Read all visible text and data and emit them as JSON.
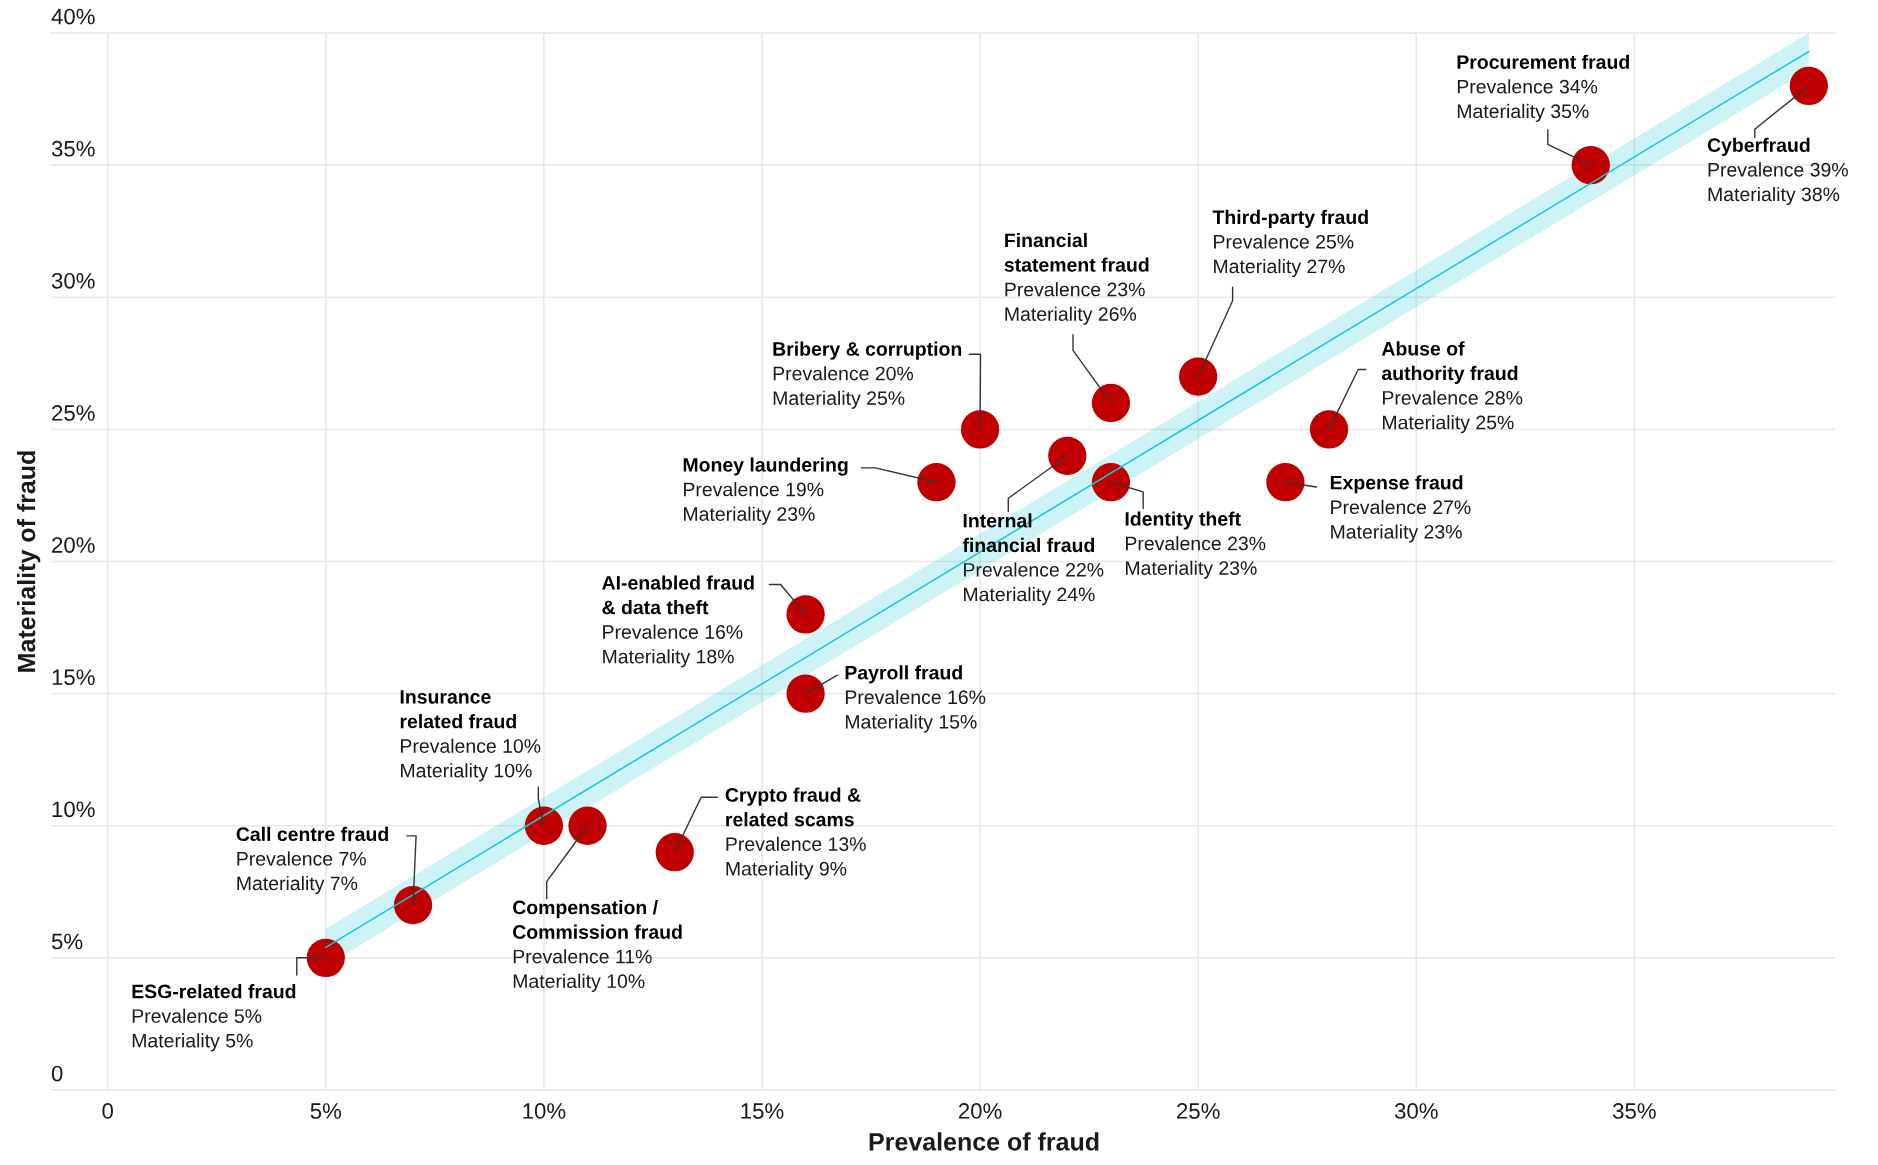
{
  "chart_data": {
    "type": "scatter",
    "xlabel": "Prevalence of fraud",
    "ylabel": "Materiality of fraud",
    "xlim": [
      -1.3,
      39.6
    ],
    "ylim": [
      0,
      40
    ],
    "xticks": [
      0,
      {
        "value": 5,
        "label": "5%"
      },
      {
        "value": 10,
        "label": "10%"
      },
      {
        "value": 15,
        "label": "15%"
      },
      {
        "value": 20,
        "label": "20%"
      },
      {
        "value": 25,
        "label": "25%"
      },
      {
        "value": 30,
        "label": "30%"
      },
      {
        "value": 35,
        "label": "35%"
      }
    ],
    "yticks": [
      0,
      {
        "value": 5,
        "label": "5%"
      },
      {
        "value": 10,
        "label": "10%"
      },
      {
        "value": 15,
        "label": "15%"
      },
      {
        "value": 20,
        "label": "20%"
      },
      {
        "value": 25,
        "label": "25%"
      },
      {
        "value": 30,
        "label": "30%"
      },
      {
        "value": 35,
        "label": "35%"
      },
      {
        "value": 40,
        "label": "40%"
      }
    ],
    "grid": true,
    "series": [
      {
        "type": "line",
        "color": "#1cc7d6",
        "x": [
          5.0,
          39.0
        ],
        "values": [
          5.4,
          39.3
        ],
        "lower": [
          4.7,
          38.6
        ],
        "upper": [
          6.1,
          40.0
        ]
      },
      {
        "color": "#c00000",
        "marker": "circle",
        "x": [
          5,
          7,
          10,
          11,
          13,
          16,
          16,
          19,
          20,
          22,
          23,
          23,
          25,
          27,
          28,
          34,
          39
        ],
        "values": [
          5,
          7,
          10,
          10,
          9,
          18,
          15,
          23,
          25,
          24,
          26,
          23,
          27,
          23,
          25,
          35,
          38
        ]
      }
    ],
    "annotations": [
      {
        "text": "ESG-related fraud\nPrevalence 5%\nMateriality 5%",
        "x": 5,
        "y": 5
      },
      {
        "text": "Call centre fraud\nPrevalence 7%\nMateriality 7%",
        "x": 7,
        "y": 7
      },
      {
        "text": "Insurance\nrelated fraud\nPrevalence 10%\nMateriality 10%",
        "x": 10,
        "y": 10
      },
      {
        "text": "Compensation /\nCommission fraud\nPrevalence 11%\nMateriality 10%",
        "x": 11,
        "y": 10
      },
      {
        "text": "Crypto fraud &\nrelated scams\nPrevalence 13%\nMateriality 9%",
        "x": 13,
        "y": 9
      },
      {
        "text": "AI-enabled fraud\n& data theft\nPrevalence 16%\nMateriality 18%",
        "x": 16,
        "y": 18
      },
      {
        "text": "Payroll fraud\nPrevalence 16%\nMateriality 15%",
        "x": 16,
        "y": 15
      },
      {
        "text": "Money laundering\nPrevalence 19%\nMateriality 23%",
        "x": 19,
        "y": 23
      },
      {
        "text": "Bribery & corruption\nPrevalence 20%\nMateriality 25%",
        "x": 20,
        "y": 25
      },
      {
        "text": "Internal\nfinancial fraud\nPrevalence 22%\nMateriality 24%",
        "x": 22,
        "y": 24
      },
      {
        "text": "Financial\nstatement fraud\nPrevalence 23%\nMateriality 26%",
        "x": 23,
        "y": 26
      },
      {
        "text": "Identity theft\nPrevalence 23%\nMateriality 23%",
        "x": 23,
        "y": 23
      },
      {
        "text": "Third-party fraud\nPrevalence 25%\nMateriality 27%",
        "x": 25,
        "y": 27
      },
      {
        "text": "Expense fraud\nPrevalence 27%\nMateriality 23%",
        "x": 27,
        "y": 23
      },
      {
        "text": "Abuse of\nauthority fraud\nPrevalence 28%\nMateriality 25%",
        "x": 28,
        "y": 25
      },
      {
        "text": "Procurement fraud\nPrevalence 34%\nMateriality 35%",
        "x": 34,
        "y": 35
      },
      {
        "text": "Cyberfraud\nPrevalence 39%\nMateriality 38%",
        "x": 39,
        "y": 38
      }
    ]
  }
}
